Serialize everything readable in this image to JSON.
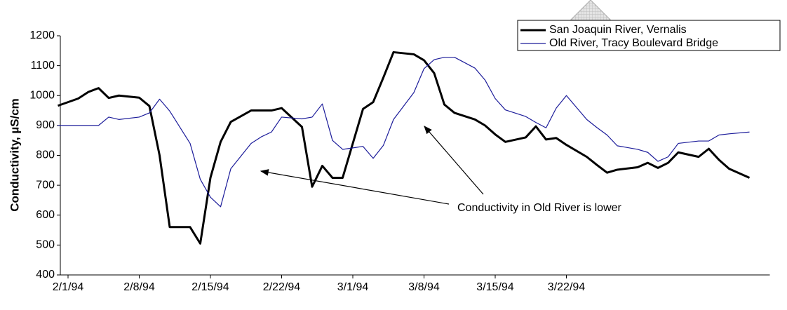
{
  "chart_data": {
    "type": "line",
    "y_label": "Conductivity, µS/cm",
    "annotation": "Conductivity in Old River is lower",
    "x": [
      "1/31/94",
      "2/2/94",
      "2/3/94",
      "2/4/94",
      "2/5/94",
      "2/6/94",
      "2/8/94",
      "2/9/94",
      "2/10/94",
      "2/11/94",
      "2/13/94",
      "2/14/94",
      "2/15/94",
      "2/16/94",
      "2/17/94",
      "2/19/94",
      "2/20/94",
      "2/21/94",
      "2/22/94",
      "2/24/94",
      "2/25/94",
      "2/26/94",
      "2/27/94",
      "2/28/94",
      "3/2/94",
      "3/3/94",
      "3/4/94",
      "3/5/94",
      "3/7/94",
      "3/8/94",
      "3/9/94",
      "3/10/94",
      "3/11/94",
      "3/13/94",
      "3/14/94",
      "3/15/94",
      "3/16/94",
      "3/18/94",
      "3/19/94",
      "3/20/94",
      "3/21/94",
      "3/22/94",
      "3/24/94",
      "3/25/94",
      "3/26/94",
      "3/27/94",
      "3/29/94",
      "3/30/94",
      "3/31/94",
      "4/1/94",
      "4/2/94",
      "4/4/94",
      "4/5/94",
      "4/6/94",
      "4/7/94",
      "4/9/94"
    ],
    "series": [
      {
        "name": "San Joaquin River, Vernalis",
        "color": "#000000",
        "line_width": 3,
        "values": [
          966,
          990,
          1012,
          1025,
          992,
          1000,
          993,
          965,
          800,
          560,
          560,
          505,
          725,
          845,
          912,
          950,
          950,
          950,
          958,
          895,
          695,
          765,
          725,
          725,
          955,
          978,
          1060,
          1145,
          1138,
          1118,
          1075,
          970,
          942,
          920,
          900,
          870,
          845,
          860,
          897,
          853,
          858,
          835,
          795,
          768,
          742,
          752,
          760,
          775,
          758,
          775,
          810,
          795,
          822,
          785,
          755,
          725
        ]
      },
      {
        "name": "Old River, Tracy Boulevard Bridge",
        "color": "#1c1c9a",
        "line_width": 1.2,
        "values": [
          900,
          900,
          900,
          900,
          928,
          920,
          928,
          942,
          988,
          948,
          840,
          720,
          660,
          628,
          755,
          840,
          862,
          878,
          928,
          922,
          928,
          972,
          850,
          820,
          830,
          790,
          833,
          920,
          1010,
          1090,
          1120,
          1128,
          1128,
          1092,
          1052,
          990,
          952,
          930,
          910,
          892,
          958,
          1000,
          920,
          893,
          868,
          832,
          820,
          810,
          780,
          795,
          840,
          848,
          848,
          868,
          872,
          878
        ]
      }
    ],
    "xlim": [
      "1/31/94",
      "4/11/94"
    ],
    "xticks": [
      "2/1/94",
      "2/8/94",
      "2/15/94",
      "2/22/94",
      "3/1/94",
      "3/8/94",
      "3/15/94",
      "3/22/94"
    ],
    "ylim": [
      400,
      1200
    ],
    "yticks": [
      400,
      500,
      600,
      700,
      800,
      900,
      1000,
      1100,
      1200
    ],
    "legend": "upper right",
    "grid": false
  }
}
